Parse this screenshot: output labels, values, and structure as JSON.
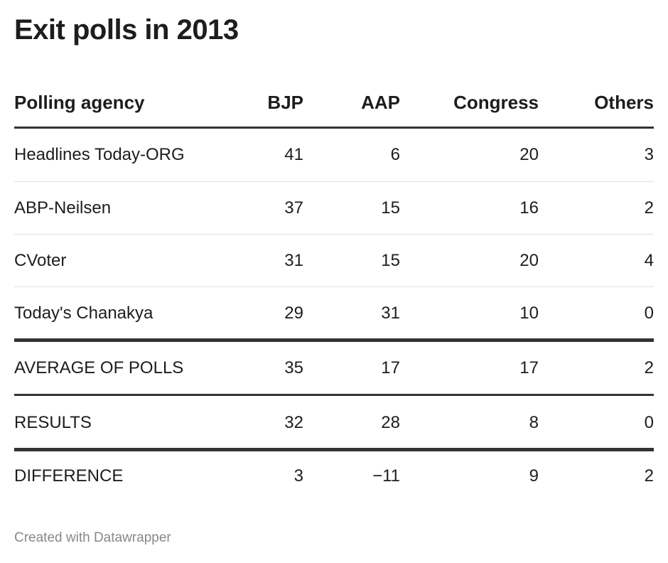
{
  "title": "Exit polls in 2013",
  "chart_data": {
    "type": "table",
    "title": "Exit polls in 2013",
    "columns": [
      "Polling agency",
      "BJP",
      "AAP",
      "Congress",
      "Others"
    ],
    "rows": [
      [
        "Headlines Today-ORG",
        "41",
        "6",
        "20",
        "3"
      ],
      [
        "ABP-Neilsen",
        "37",
        "15",
        "16",
        "2"
      ],
      [
        "CVoter",
        "31",
        "15",
        "20",
        "4"
      ],
      [
        "Today's Chanakya",
        "29",
        "31",
        "10",
        "0"
      ],
      [
        "AVERAGE OF POLLS",
        "35",
        "17",
        "17",
        "2"
      ],
      [
        "RESULTS",
        "32",
        "28",
        "8",
        "0"
      ],
      [
        "DIFFERENCE",
        "3",
        "−11",
        "9",
        "2"
      ]
    ]
  },
  "footer": "Created with Datawrapper"
}
